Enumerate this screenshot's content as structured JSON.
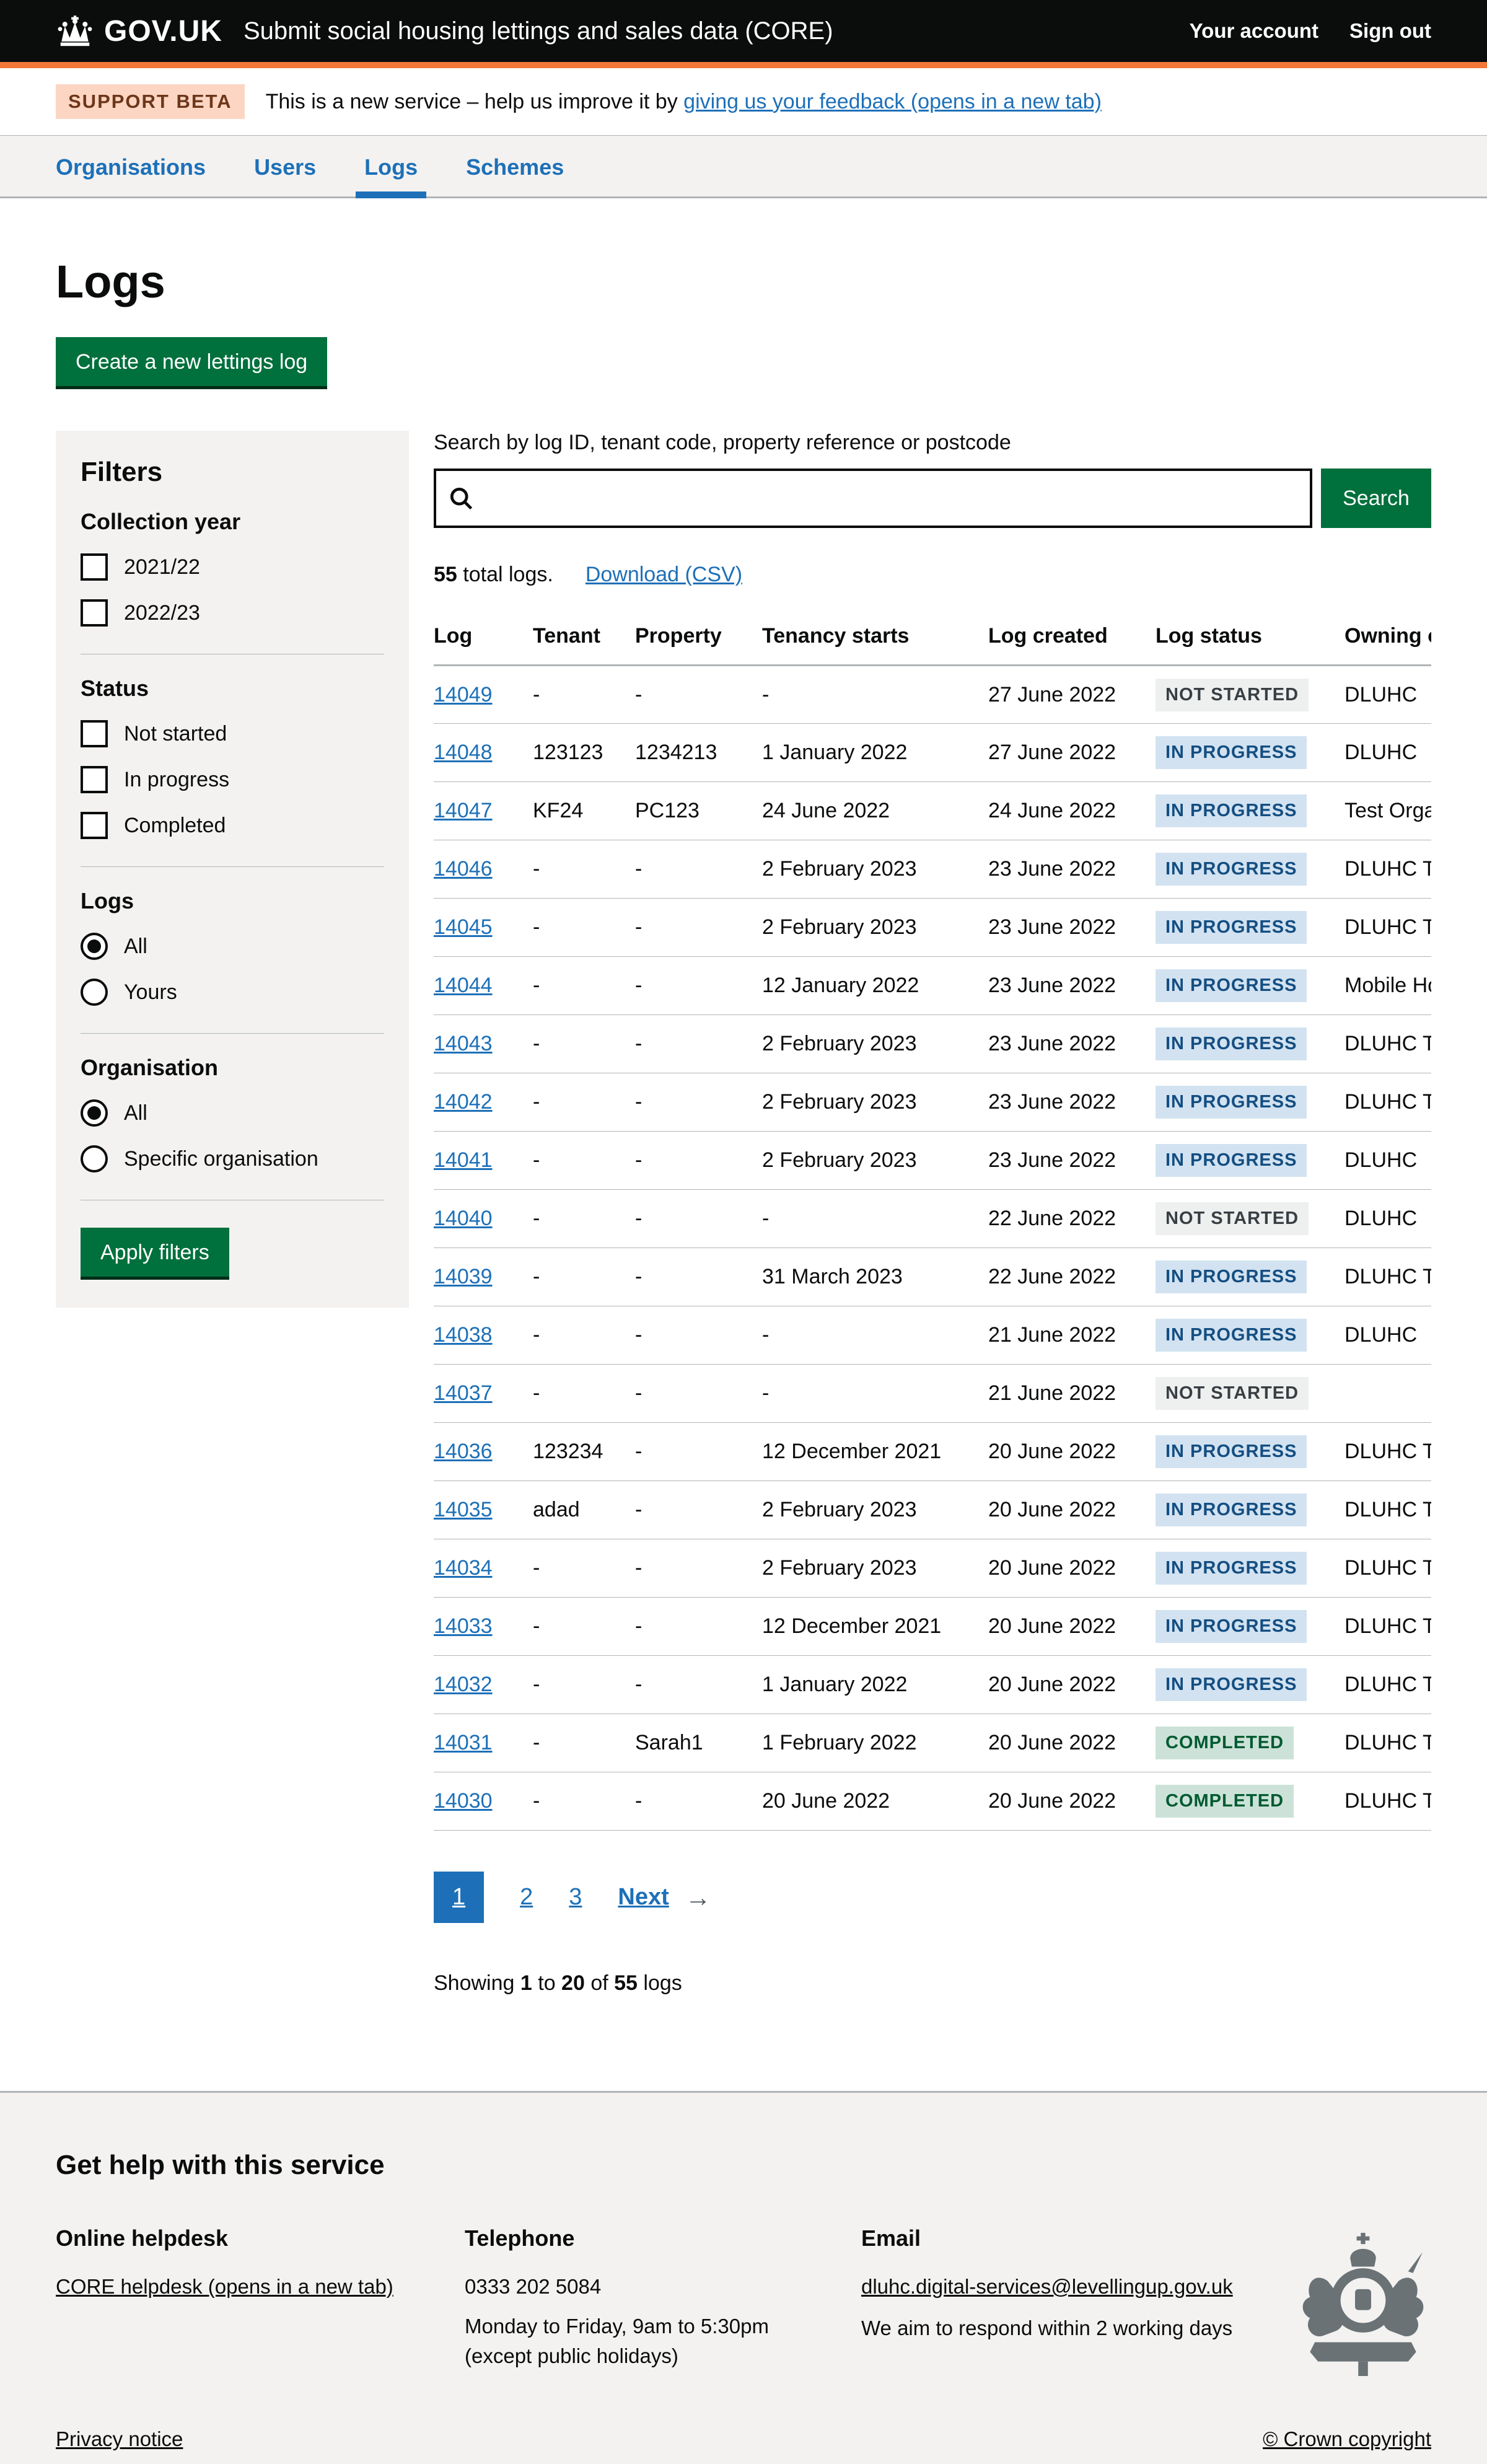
{
  "colors": {
    "header_bg": "#0b0c0c",
    "accent_orange": "#f47738",
    "link_blue": "#1d70b8",
    "button_green": "#00703c",
    "panel_grey": "#f3f2f1",
    "border_grey": "#b1b4b6",
    "tag_grey_bg": "#eeefef",
    "tag_blue_bg": "#d2e2f1",
    "tag_green_bg": "#cce2d8"
  },
  "header": {
    "logo": "GOV.UK",
    "service_name": "Submit social housing lettings and sales data (CORE)",
    "account_link": "Your account",
    "signout_link": "Sign out"
  },
  "phase_banner": {
    "tag": "SUPPORT BETA",
    "text_before": "This is a new service – help us improve it by ",
    "feedback_link": "giving us your feedback (opens in a new tab)"
  },
  "nav": {
    "items": [
      {
        "label": "Organisations",
        "active": false
      },
      {
        "label": "Users",
        "active": false
      },
      {
        "label": "Logs",
        "active": true
      },
      {
        "label": "Schemes",
        "active": false
      }
    ]
  },
  "page": {
    "title": "Logs",
    "create_button": "Create a new lettings log"
  },
  "filters": {
    "title": "Filters",
    "apply_button": "Apply filters",
    "groups": [
      {
        "title": "Collection year",
        "type": "checkbox",
        "options": [
          {
            "label": "2021/22",
            "checked": false
          },
          {
            "label": "2022/23",
            "checked": false
          }
        ]
      },
      {
        "title": "Status",
        "type": "checkbox",
        "options": [
          {
            "label": "Not started",
            "checked": false
          },
          {
            "label": "In progress",
            "checked": false
          },
          {
            "label": "Completed",
            "checked": false
          }
        ]
      },
      {
        "title": "Logs",
        "type": "radio",
        "options": [
          {
            "label": "All",
            "checked": true
          },
          {
            "label": "Yours",
            "checked": false
          }
        ]
      },
      {
        "title": "Organisation",
        "type": "radio",
        "options": [
          {
            "label": "All",
            "checked": true
          },
          {
            "label": "Specific organisation",
            "checked": false
          }
        ]
      }
    ]
  },
  "search": {
    "label": "Search by log ID, tenant code, property reference or postcode",
    "value": "",
    "button": "Search"
  },
  "results": {
    "total_count": "55",
    "total_text": " total logs.",
    "download_link": "Download (CSV)"
  },
  "table": {
    "headers": [
      "Log",
      "Tenant",
      "Property",
      "Tenancy starts",
      "Log created",
      "Log status",
      "Owning organisation"
    ],
    "statuses": {
      "not_started": {
        "label": "NOT STARTED",
        "style": "grey"
      },
      "in_progress": {
        "label": "IN PROGRESS",
        "style": "blue"
      },
      "completed": {
        "label": "COMPLETED",
        "style": "green"
      }
    },
    "rows": [
      {
        "log": "14049",
        "tenant": "-",
        "property": "-",
        "tenancy_starts": "-",
        "log_created": "27 June 2022",
        "status": "not_started",
        "owning": "DLUHC"
      },
      {
        "log": "14048",
        "tenant": "123123",
        "property": "1234213",
        "tenancy_starts": "1 January 2022",
        "log_created": "27 June 2022",
        "status": "in_progress",
        "owning": "DLUHC"
      },
      {
        "log": "14047",
        "tenant": "KF24",
        "property": "PC123",
        "tenancy_starts": "24 June 2022",
        "log_created": "24 June 2022",
        "status": "in_progress",
        "owning": "Test Organisation"
      },
      {
        "log": "14046",
        "tenant": "-",
        "property": "-",
        "tenancy_starts": "2 February 2023",
        "log_created": "23 June 2022",
        "status": "in_progress",
        "owning": "DLUHC Test Org"
      },
      {
        "log": "14045",
        "tenant": "-",
        "property": "-",
        "tenancy_starts": "2 February 2023",
        "log_created": "23 June 2022",
        "status": "in_progress",
        "owning": "DLUHC Test Org"
      },
      {
        "log": "14044",
        "tenant": "-",
        "property": "-",
        "tenancy_starts": "12 January 2022",
        "log_created": "23 June 2022",
        "status": "in_progress",
        "owning": "Mobile Housing"
      },
      {
        "log": "14043",
        "tenant": "-",
        "property": "-",
        "tenancy_starts": "2 February 2023",
        "log_created": "23 June 2022",
        "status": "in_progress",
        "owning": "DLUHC Test Org"
      },
      {
        "log": "14042",
        "tenant": "-",
        "property": "-",
        "tenancy_starts": "2 February 2023",
        "log_created": "23 June 2022",
        "status": "in_progress",
        "owning": "DLUHC Test Org"
      },
      {
        "log": "14041",
        "tenant": "-",
        "property": "-",
        "tenancy_starts": "2 February 2023",
        "log_created": "23 June 2022",
        "status": "in_progress",
        "owning": "DLUHC"
      },
      {
        "log": "14040",
        "tenant": "-",
        "property": "-",
        "tenancy_starts": "-",
        "log_created": "22 June 2022",
        "status": "not_started",
        "owning": "DLUHC"
      },
      {
        "log": "14039",
        "tenant": "-",
        "property": "-",
        "tenancy_starts": "31 March 2023",
        "log_created": "22 June 2022",
        "status": "in_progress",
        "owning": "DLUHC Test Org"
      },
      {
        "log": "14038",
        "tenant": "-",
        "property": "-",
        "tenancy_starts": "-",
        "log_created": "21 June 2022",
        "status": "in_progress",
        "owning": "DLUHC"
      },
      {
        "log": "14037",
        "tenant": "-",
        "property": "-",
        "tenancy_starts": "-",
        "log_created": "21 June 2022",
        "status": "not_started",
        "owning": ""
      },
      {
        "log": "14036",
        "tenant": "123234",
        "property": "-",
        "tenancy_starts": "12 December 2021",
        "log_created": "20 June 2022",
        "status": "in_progress",
        "owning": "DLUHC Test Org"
      },
      {
        "log": "14035",
        "tenant": "adad",
        "property": "-",
        "tenancy_starts": "2 February 2023",
        "log_created": "20 June 2022",
        "status": "in_progress",
        "owning": "DLUHC Test Org"
      },
      {
        "log": "14034",
        "tenant": "-",
        "property": "-",
        "tenancy_starts": "2 February 2023",
        "log_created": "20 June 2022",
        "status": "in_progress",
        "owning": "DLUHC Test Org"
      },
      {
        "log": "14033",
        "tenant": "-",
        "property": "-",
        "tenancy_starts": "12 December 2021",
        "log_created": "20 June 2022",
        "status": "in_progress",
        "owning": "DLUHC Test Org"
      },
      {
        "log": "14032",
        "tenant": "-",
        "property": "-",
        "tenancy_starts": "1 January 2022",
        "log_created": "20 June 2022",
        "status": "in_progress",
        "owning": "DLUHC Test Org"
      },
      {
        "log": "14031",
        "tenant": "-",
        "property": "Sarah1",
        "tenancy_starts": "1 February 2022",
        "log_created": "20 June 2022",
        "status": "completed",
        "owning": "DLUHC Test Org"
      },
      {
        "log": "14030",
        "tenant": "-",
        "property": "-",
        "tenancy_starts": "20 June 2022",
        "log_created": "20 June 2022",
        "status": "completed",
        "owning": "DLUHC Test Org"
      }
    ]
  },
  "pagination": {
    "current": "1",
    "pages": [
      "2",
      "3"
    ],
    "next_label": "Next",
    "arrow": "→"
  },
  "showing": {
    "prefix": "Showing ",
    "from": "1",
    "to_word": " to ",
    "to": "20",
    "of_word": " of ",
    "total": "55",
    "suffix": " logs"
  },
  "footer": {
    "heading": "Get help with this service",
    "helpdesk_title": "Online helpdesk",
    "helpdesk_link": "CORE helpdesk (opens in a new tab)",
    "telephone_title": "Telephone",
    "telephone_number": "0333 202 5084",
    "telephone_line1": "Monday to Friday, 9am to 5:30pm",
    "telephone_line2": "(except public holidays)",
    "email_title": "Email",
    "email_link": "dluhc.digital-services@levellingup.gov.uk",
    "email_line": "We aim to respond within 2 working days",
    "privacy_link": "Privacy notice",
    "copyright": "© Crown copyright"
  }
}
